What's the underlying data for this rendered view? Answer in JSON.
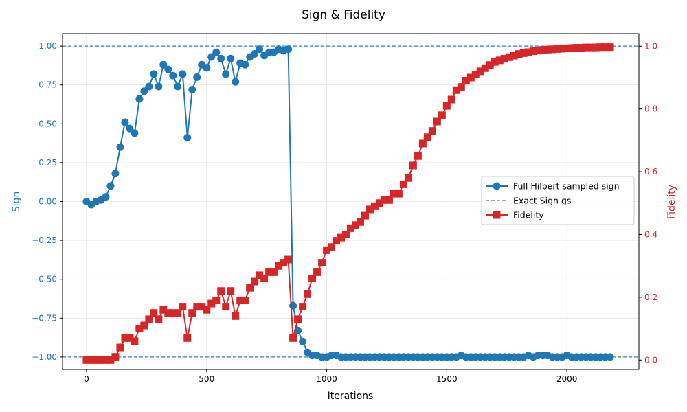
{
  "chart_data": {
    "type": "line",
    "title": "Sign & Fidelity",
    "xlabel": "Iterations",
    "ylabel_left": "Sign",
    "ylabel_right": "Fidelity",
    "xlim": [
      -100,
      2300
    ],
    "ylim_left": [
      -1.08,
      1.08
    ],
    "ylim_right": [
      -0.03,
      1.04
    ],
    "x_ticks": [
      0,
      500,
      1000,
      1500,
      2000
    ],
    "y_ticks_left": [
      -1.0,
      -0.75,
      -0.5,
      -0.25,
      0.0,
      0.25,
      0.5,
      0.75,
      1.0
    ],
    "y_ticks_left_labels": [
      "−1.00",
      "−0.75",
      "−0.50",
      "−0.25",
      "0.00",
      "0.25",
      "0.50",
      "0.75",
      "1.00"
    ],
    "y_ticks_right": [
      0.0,
      0.2,
      0.4,
      0.6,
      0.8,
      1.0
    ],
    "y_ticks_right_labels": [
      "0.0",
      "0.2",
      "0.4",
      "0.6",
      "0.8",
      "1.0"
    ],
    "grid": true,
    "legend_position": "center-right",
    "colors": {
      "sign": "#1f77b4",
      "fidelity": "#d62728",
      "exact": "#1f77b4"
    },
    "exact_sign_levels": [
      1.0,
      -1.0
    ],
    "series": [
      {
        "name": "Full Hilbert sampled sign",
        "axis": "left",
        "marker": "circle",
        "x": [
          0,
          20,
          40,
          60,
          80,
          100,
          120,
          140,
          160,
          180,
          200,
          220,
          240,
          260,
          280,
          300,
          320,
          340,
          360,
          380,
          400,
          420,
          440,
          460,
          480,
          500,
          520,
          540,
          560,
          580,
          600,
          620,
          640,
          660,
          680,
          700,
          720,
          740,
          760,
          780,
          800,
          820,
          840,
          860,
          880,
          900,
          920,
          940,
          960,
          980,
          1000,
          1020,
          1040,
          1060,
          1080,
          1100,
          1120,
          1140,
          1160,
          1180,
          1200,
          1220,
          1240,
          1260,
          1280,
          1300,
          1320,
          1340,
          1360,
          1380,
          1400,
          1420,
          1440,
          1460,
          1480,
          1500,
          1520,
          1540,
          1560,
          1580,
          1600,
          1620,
          1640,
          1660,
          1680,
          1700,
          1720,
          1740,
          1760,
          1780,
          1800,
          1820,
          1840,
          1860,
          1880,
          1900,
          1920,
          1940,
          1960,
          1980,
          2000,
          2020,
          2040,
          2060,
          2080,
          2100,
          2120,
          2140,
          2160,
          2180
        ],
        "values": [
          0.0,
          -0.02,
          0.0,
          0.01,
          0.03,
          0.1,
          0.18,
          0.35,
          0.51,
          0.47,
          0.44,
          0.66,
          0.71,
          0.74,
          0.82,
          0.74,
          0.88,
          0.85,
          0.81,
          0.74,
          0.82,
          0.41,
          0.72,
          0.8,
          0.88,
          0.86,
          0.93,
          0.96,
          0.92,
          0.82,
          0.92,
          0.77,
          0.89,
          0.88,
          0.93,
          0.95,
          0.98,
          0.94,
          0.96,
          0.96,
          0.98,
          0.97,
          0.98,
          -0.67,
          -0.83,
          -0.9,
          -0.97,
          -0.99,
          -0.99,
          -1.0,
          -1.0,
          -0.99,
          -0.99,
          -1.0,
          -1.0,
          -1.0,
          -1.0,
          -1.0,
          -1.0,
          -1.0,
          -1.0,
          -1.0,
          -1.0,
          -1.0,
          -1.0,
          -1.0,
          -1.0,
          -1.0,
          -1.0,
          -1.0,
          -1.0,
          -1.0,
          -1.0,
          -1.0,
          -1.0,
          -1.0,
          -1.0,
          -1.0,
          -0.99,
          -1.0,
          -1.0,
          -1.0,
          -1.0,
          -1.0,
          -1.0,
          -1.0,
          -1.0,
          -1.0,
          -1.0,
          -1.0,
          -1.0,
          -1.0,
          -0.99,
          -1.0,
          -0.99,
          -0.99,
          -0.99,
          -1.0,
          -1.0,
          -1.0,
          -0.99,
          -1.0,
          -1.0,
          -1.0,
          -1.0,
          -1.0,
          -1.0,
          -1.0,
          -1.0,
          -1.0
        ]
      },
      {
        "name": "Exact Sign gs",
        "axis": "left",
        "style": "dashed"
      },
      {
        "name": "Fidelity",
        "axis": "right",
        "marker": "square",
        "x": [
          0,
          20,
          40,
          60,
          80,
          100,
          120,
          140,
          160,
          180,
          200,
          220,
          240,
          260,
          280,
          300,
          320,
          340,
          360,
          380,
          400,
          420,
          440,
          460,
          480,
          500,
          520,
          540,
          560,
          580,
          600,
          620,
          640,
          660,
          680,
          700,
          720,
          740,
          760,
          780,
          800,
          820,
          840,
          860,
          880,
          900,
          920,
          940,
          960,
          980,
          1000,
          1020,
          1040,
          1060,
          1080,
          1100,
          1120,
          1140,
          1160,
          1180,
          1200,
          1220,
          1240,
          1260,
          1280,
          1300,
          1320,
          1340,
          1360,
          1380,
          1400,
          1420,
          1440,
          1460,
          1480,
          1500,
          1520,
          1540,
          1560,
          1580,
          1600,
          1620,
          1640,
          1660,
          1680,
          1700,
          1720,
          1740,
          1760,
          1780,
          1800,
          1820,
          1840,
          1860,
          1880,
          1900,
          1920,
          1940,
          1960,
          1980,
          2000,
          2020,
          2040,
          2060,
          2080,
          2100,
          2120,
          2140,
          2160,
          2180
        ],
        "values": [
          0.0,
          0.0,
          0.0,
          0.0,
          0.0,
          0.0,
          0.01,
          0.04,
          0.07,
          0.07,
          0.06,
          0.1,
          0.11,
          0.13,
          0.15,
          0.13,
          0.16,
          0.15,
          0.15,
          0.15,
          0.17,
          0.07,
          0.15,
          0.17,
          0.17,
          0.16,
          0.18,
          0.19,
          0.22,
          0.17,
          0.22,
          0.14,
          0.19,
          0.19,
          0.23,
          0.25,
          0.27,
          0.26,
          0.28,
          0.28,
          0.3,
          0.31,
          0.32,
          0.07,
          0.13,
          0.17,
          0.21,
          0.26,
          0.28,
          0.31,
          0.35,
          0.36,
          0.38,
          0.39,
          0.4,
          0.42,
          0.43,
          0.44,
          0.46,
          0.48,
          0.49,
          0.5,
          0.51,
          0.51,
          0.53,
          0.53,
          0.56,
          0.58,
          0.62,
          0.65,
          0.69,
          0.71,
          0.73,
          0.76,
          0.78,
          0.81,
          0.83,
          0.86,
          0.87,
          0.89,
          0.9,
          0.91,
          0.92,
          0.93,
          0.94,
          0.95,
          0.955,
          0.96,
          0.965,
          0.97,
          0.975,
          0.978,
          0.981,
          0.984,
          0.986,
          0.988,
          0.989,
          0.99,
          0.991,
          0.992,
          0.993,
          0.994,
          0.995,
          0.995,
          0.996,
          0.996,
          0.996,
          0.997,
          0.997,
          0.997
        ]
      }
    ]
  }
}
